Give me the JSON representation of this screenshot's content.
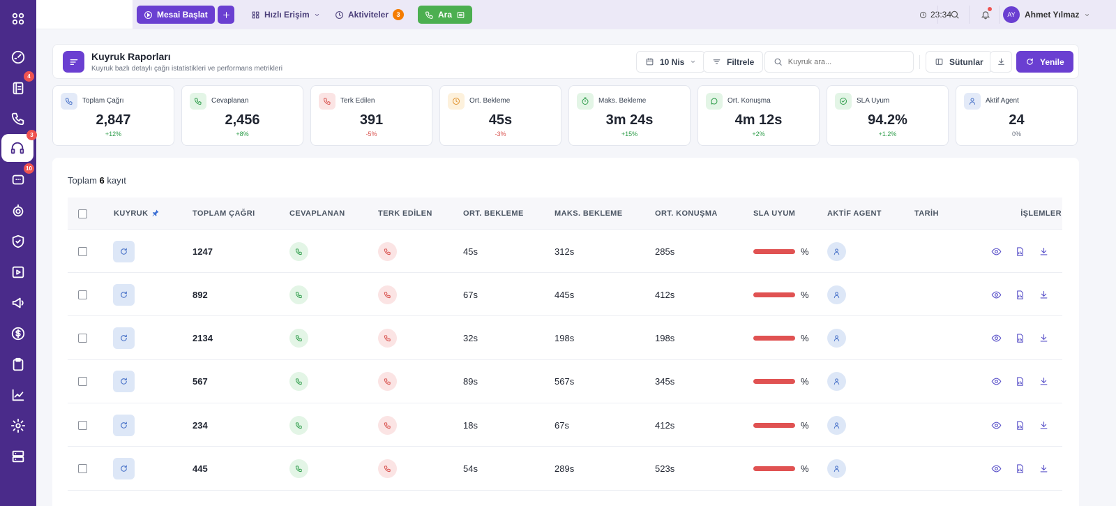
{
  "sidebar": {
    "items": [
      {
        "icon": "apps-grid-icon",
        "badge": ""
      },
      {
        "icon": "dashboard-gauge-icon",
        "badge": ""
      },
      {
        "icon": "contacts-icon",
        "badge": "4"
      },
      {
        "icon": "phone-icon",
        "badge": ""
      },
      {
        "icon": "headset-icon",
        "badge": "3"
      },
      {
        "icon": "chat-icon",
        "badge": "10"
      },
      {
        "icon": "robot-icon",
        "badge": ""
      },
      {
        "icon": "shield-check-icon",
        "badge": ""
      },
      {
        "icon": "play-icon",
        "badge": ""
      },
      {
        "icon": "megaphone-icon",
        "badge": ""
      },
      {
        "icon": "dollar-icon",
        "badge": ""
      },
      {
        "icon": "clipboard-icon",
        "badge": ""
      },
      {
        "icon": "chart-line-icon",
        "badge": ""
      },
      {
        "icon": "settings-gear-icon",
        "badge": ""
      },
      {
        "icon": "server-icon",
        "badge": ""
      }
    ],
    "active_index": 4
  },
  "topbar": {
    "start_shift": "Mesai Başlat",
    "quick_access": "Hızlı Erişim",
    "activities": "Aktiviteler",
    "activities_count": "3",
    "call": "Ara",
    "time": "23:34",
    "user_initials": "AY",
    "user_name": "Ahmet Yılmaz"
  },
  "header": {
    "title": "Kuyruk Raporları",
    "subtitle": "Kuyruk bazlı detaylı çağrı istatistikleri ve performans metrikleri",
    "date": "10 Nis",
    "filter": "Filtrele",
    "search_placeholder": "Kuyruk ara...",
    "columns": "Sütunlar",
    "refresh": "Yenile"
  },
  "stats": [
    {
      "label": "Toplam Çağrı",
      "value": "2,847",
      "change": "+12%",
      "icon": "phone-icon",
      "tint": "#e3eaf8",
      "stroke": "#4b74c9",
      "change_color": "#2e9d4a"
    },
    {
      "label": "Cevaplanan",
      "value": "2,456",
      "change": "+8%",
      "icon": "phone-icon",
      "tint": "#e3f5e6",
      "stroke": "#2e9d4a",
      "change_color": "#2e9d4a"
    },
    {
      "label": "Terk Edilen",
      "value": "391",
      "change": "-5%",
      "icon": "phone-icon",
      "tint": "#fbe4e4",
      "stroke": "#d9534f",
      "change_color": "#d9534f"
    },
    {
      "label": "Ort. Bekleme",
      "value": "45s",
      "change": "-3%",
      "icon": "clock-icon",
      "tint": "#fdf1dc",
      "stroke": "#e0912c",
      "change_color": "#d9534f"
    },
    {
      "label": "Maks. Bekleme",
      "value": "3m 24s",
      "change": "+15%",
      "icon": "timer-icon",
      "tint": "#e3f5e6",
      "stroke": "#2e9d4a",
      "change_color": "#2e9d4a"
    },
    {
      "label": "Ort. Konuşma",
      "value": "4m 12s",
      "change": "+2%",
      "icon": "message-icon",
      "tint": "#e3f5e6",
      "stroke": "#2e9d4a",
      "change_color": "#2e9d4a"
    },
    {
      "label": "SLA Uyum",
      "value": "94.2%",
      "change": "+1.2%",
      "icon": "check-circle-icon",
      "tint": "#e3f5e6",
      "stroke": "#2e9d4a",
      "change_color": "#2e9d4a"
    },
    {
      "label": "Aktif Agent",
      "value": "24",
      "change": "0%",
      "icon": "user-icon",
      "tint": "#e3eaf8",
      "stroke": "#4b74c9",
      "change_color": "#6b7280"
    }
  ],
  "table": {
    "total_prefix": "Toplam",
    "total_count": "6",
    "total_suffix": "kayıt",
    "headers": [
      "KUYRUK",
      "TOPLAM ÇAĞRI",
      "CEVAPLANAN",
      "TERK EDİLEN",
      "ORT. BEKLEME",
      "MAKS. BEKLEME",
      "ORT. KONUŞMA",
      "SLA UYUM",
      "AKTİF AGENT",
      "TARİH",
      "İŞLEMLER"
    ],
    "percent_sign": "%",
    "rows": [
      {
        "total_calls": "1247",
        "avg_wait": "45s",
        "max_wait": "312s",
        "avg_talk": "285s"
      },
      {
        "total_calls": "892",
        "avg_wait": "67s",
        "max_wait": "445s",
        "avg_talk": "412s"
      },
      {
        "total_calls": "2134",
        "avg_wait": "32s",
        "max_wait": "198s",
        "avg_talk": "198s"
      },
      {
        "total_calls": "567",
        "avg_wait": "89s",
        "max_wait": "567s",
        "avg_talk": "345s"
      },
      {
        "total_calls": "234",
        "avg_wait": "18s",
        "max_wait": "67s",
        "avg_talk": "412s"
      },
      {
        "total_calls": "445",
        "avg_wait": "54s",
        "max_wait": "289s",
        "avg_talk": "523s"
      }
    ]
  },
  "colors": {
    "sidebar": "#4a2b8a",
    "accent": "#6a3fd1",
    "call_green": "#4caf50",
    "badge_red": "#ef5350",
    "sla_bar": "#e05252"
  }
}
